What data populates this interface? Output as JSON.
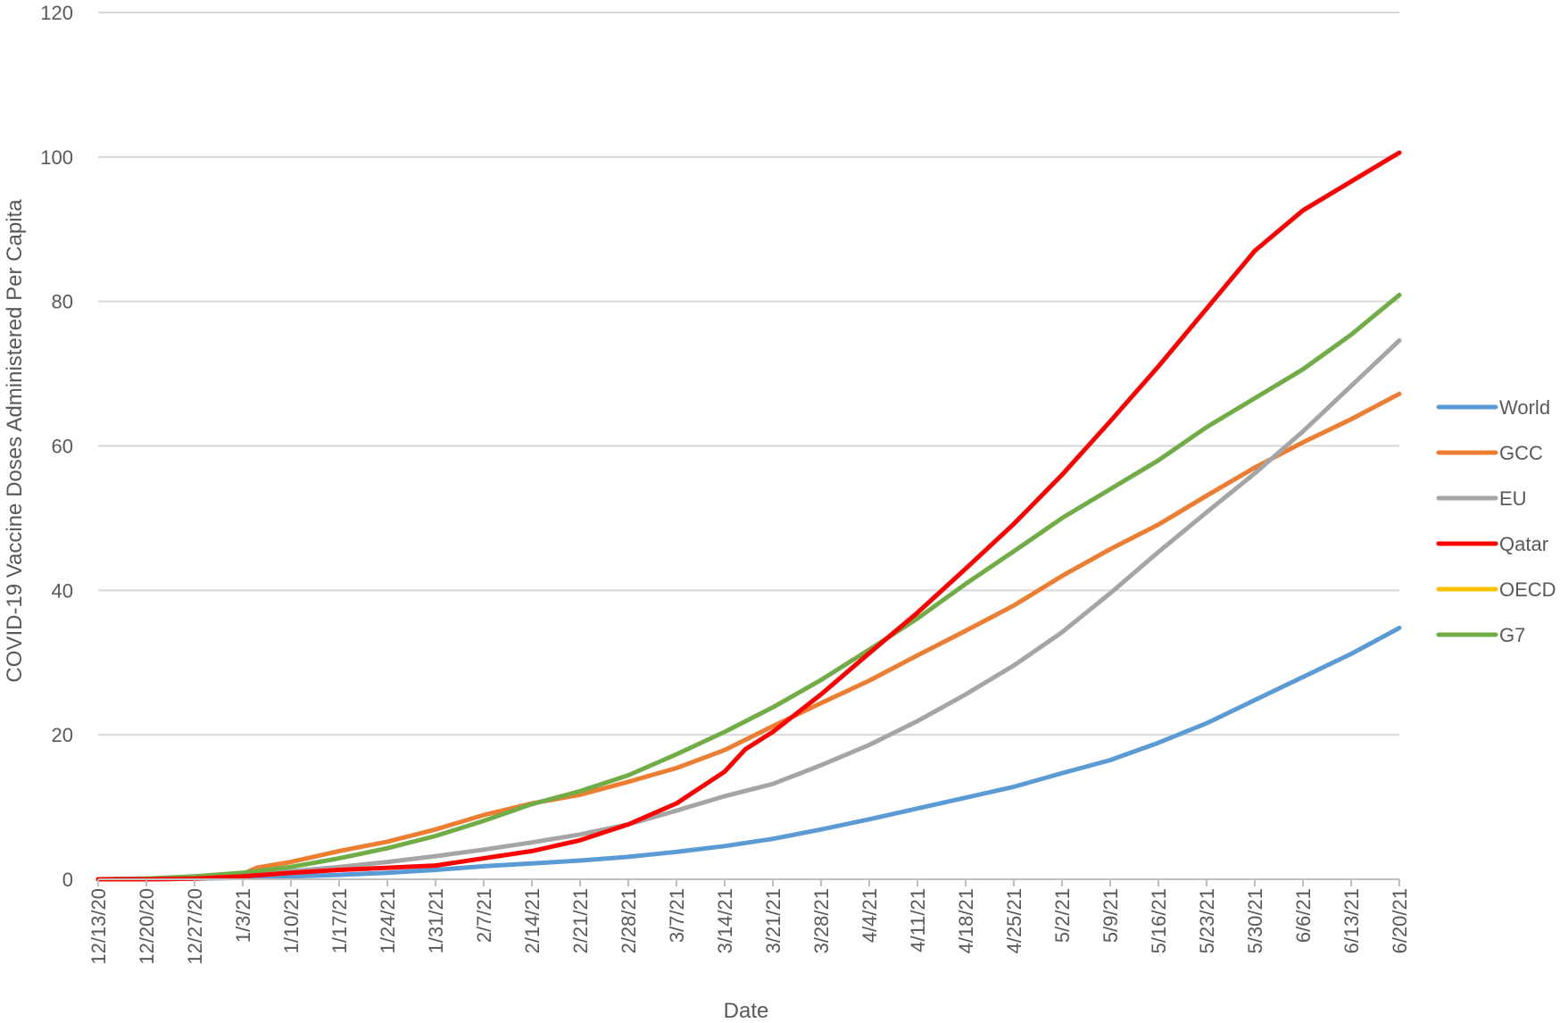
{
  "chart_data": {
    "type": "line",
    "title": "",
    "xlabel": "Date",
    "ylabel": "COVID-19 Vaccine Doses Administered Per Capita",
    "x_axis": "date",
    "x_range": [
      "2020-12-13",
      "2021-06-20"
    ],
    "ylim": [
      0,
      120
    ],
    "yticks": [
      0,
      20,
      40,
      60,
      80,
      100,
      120
    ],
    "x_tick_labels": [
      "12/13/20",
      "12/20/20",
      "12/27/20",
      "1/3/21",
      "1/10/21",
      "1/17/21",
      "1/24/21",
      "1/31/21",
      "2/7/21",
      "2/14/21",
      "2/21/21",
      "2/28/21",
      "3/7/21",
      "3/14/21",
      "3/21/21",
      "3/28/21",
      "4/4/21",
      "4/11/21",
      "4/18/21",
      "4/25/21",
      "5/2/21",
      "5/9/21",
      "5/16/21",
      "5/23/21",
      "5/30/21",
      "6/6/21",
      "6/13/21",
      "6/20/21"
    ],
    "grid": true,
    "legend_position": "right",
    "series": [
      {
        "name": "World",
        "color": "#5b9bd5",
        "points": [
          [
            "12/13/20",
            0
          ],
          [
            "12/20/20",
            0
          ],
          [
            "12/27/20",
            0.1
          ],
          [
            "1/3/21",
            0.2
          ],
          [
            "1/10/21",
            0.4
          ],
          [
            "1/17/21",
            0.6
          ],
          [
            "1/24/21",
            0.9
          ],
          [
            "1/31/21",
            1.3
          ],
          [
            "2/7/21",
            1.8
          ],
          [
            "2/14/21",
            2.2
          ],
          [
            "2/21/21",
            2.6
          ],
          [
            "2/28/21",
            3.1
          ],
          [
            "3/7/21",
            3.8
          ],
          [
            "3/14/21",
            4.6
          ],
          [
            "3/21/21",
            5.6
          ],
          [
            "3/28/21",
            6.9
          ],
          [
            "4/4/21",
            8.3
          ],
          [
            "4/11/21",
            9.8
          ],
          [
            "4/18/21",
            11.3
          ],
          [
            "4/25/21",
            12.8
          ],
          [
            "5/2/21",
            14.7
          ],
          [
            "5/9/21",
            16.5
          ],
          [
            "5/16/21",
            18.9
          ],
          [
            "5/23/21",
            21.6
          ],
          [
            "5/30/21",
            24.8
          ],
          [
            "6/6/21",
            28.0
          ],
          [
            "6/13/21",
            31.2
          ],
          [
            "6/20/21",
            34.8
          ]
        ]
      },
      {
        "name": "GCC",
        "color": "#ed7d31",
        "points": [
          [
            "12/13/20",
            0
          ],
          [
            "12/20/20",
            0.1
          ],
          [
            "12/27/20",
            0.3
          ],
          [
            "1/3/21",
            0.7
          ],
          [
            "1/5/21",
            1.6
          ],
          [
            "1/10/21",
            2.4
          ],
          [
            "1/17/21",
            3.9
          ],
          [
            "1/24/21",
            5.2
          ],
          [
            "1/31/21",
            6.9
          ],
          [
            "2/7/21",
            8.9
          ],
          [
            "2/14/21",
            10.5
          ],
          [
            "2/21/21",
            11.7
          ],
          [
            "2/28/21",
            13.5
          ],
          [
            "3/7/21",
            15.4
          ],
          [
            "3/14/21",
            17.9
          ],
          [
            "3/21/21",
            21.2
          ],
          [
            "3/28/21",
            24.4
          ],
          [
            "4/4/21",
            27.5
          ],
          [
            "4/11/21",
            31.0
          ],
          [
            "4/18/21",
            34.4
          ],
          [
            "4/25/21",
            37.9
          ],
          [
            "5/2/21",
            42.0
          ],
          [
            "5/9/21",
            45.7
          ],
          [
            "5/16/21",
            49.1
          ],
          [
            "5/23/21",
            53.1
          ],
          [
            "5/30/21",
            57.0
          ],
          [
            "6/6/21",
            60.5
          ],
          [
            "6/13/21",
            63.7
          ],
          [
            "6/20/21",
            67.2
          ]
        ]
      },
      {
        "name": "EU",
        "color": "#a5a5a5",
        "points": [
          [
            "12/13/20",
            0
          ],
          [
            "12/20/20",
            0
          ],
          [
            "12/27/20",
            0.1
          ],
          [
            "1/3/21",
            0.5
          ],
          [
            "1/10/21",
            1.1
          ],
          [
            "1/17/21",
            1.7
          ],
          [
            "1/24/21",
            2.4
          ],
          [
            "1/31/21",
            3.2
          ],
          [
            "2/7/21",
            4.1
          ],
          [
            "2/14/21",
            5.1
          ],
          [
            "2/21/21",
            6.2
          ],
          [
            "2/28/21",
            7.6
          ],
          [
            "3/7/21",
            9.5
          ],
          [
            "3/14/21",
            11.5
          ],
          [
            "3/21/21",
            13.2
          ],
          [
            "3/28/21",
            15.8
          ],
          [
            "4/4/21",
            18.6
          ],
          [
            "4/11/21",
            21.9
          ],
          [
            "4/18/21",
            25.6
          ],
          [
            "4/25/21",
            29.6
          ],
          [
            "5/2/21",
            34.2
          ],
          [
            "5/9/21",
            39.6
          ],
          [
            "5/16/21",
            45.3
          ],
          [
            "5/23/21",
            50.8
          ],
          [
            "5/30/21",
            56.2
          ],
          [
            "6/6/21",
            62.0
          ],
          [
            "6/13/21",
            68.3
          ],
          [
            "6/20/21",
            74.6
          ]
        ]
      },
      {
        "name": "Qatar",
        "color": "#ff0000",
        "points": [
          [
            "12/13/20",
            0
          ],
          [
            "12/20/20",
            0
          ],
          [
            "12/27/20",
            0.1
          ],
          [
            "1/3/21",
            0.4
          ],
          [
            "1/10/21",
            0.9
          ],
          [
            "1/17/21",
            1.3
          ],
          [
            "1/24/21",
            1.6
          ],
          [
            "1/31/21",
            1.9
          ],
          [
            "2/7/21",
            2.9
          ],
          [
            "2/14/21",
            3.9
          ],
          [
            "2/21/21",
            5.4
          ],
          [
            "2/28/21",
            7.6
          ],
          [
            "3/7/21",
            10.5
          ],
          [
            "3/14/21",
            14.9
          ],
          [
            "3/17/21",
            18.0
          ],
          [
            "3/21/21",
            20.4
          ],
          [
            "3/28/21",
            25.6
          ],
          [
            "4/4/21",
            31.3
          ],
          [
            "4/11/21",
            36.9
          ],
          [
            "4/18/21",
            43.0
          ],
          [
            "4/25/21",
            49.2
          ],
          [
            "5/2/21",
            56.0
          ],
          [
            "5/9/21",
            63.4
          ],
          [
            "5/16/21",
            71.0
          ],
          [
            "5/23/21",
            79.0
          ],
          [
            "5/30/21",
            87.0
          ],
          [
            "6/6/21",
            92.6
          ],
          [
            "6/13/21",
            96.6
          ],
          [
            "6/20/21",
            100.6
          ]
        ]
      },
      {
        "name": "OECD",
        "color": "#ffc000",
        "points": []
      },
      {
        "name": "G7",
        "color": "#70ad47",
        "points": [
          [
            "12/13/20",
            0
          ],
          [
            "12/20/20",
            0.1
          ],
          [
            "12/27/20",
            0.4
          ],
          [
            "1/3/21",
            0.9
          ],
          [
            "1/10/21",
            1.7
          ],
          [
            "1/17/21",
            2.9
          ],
          [
            "1/24/21",
            4.3
          ],
          [
            "1/31/21",
            6.0
          ],
          [
            "2/7/21",
            8.1
          ],
          [
            "2/14/21",
            10.4
          ],
          [
            "2/21/21",
            12.2
          ],
          [
            "2/28/21",
            14.4
          ],
          [
            "3/7/21",
            17.3
          ],
          [
            "3/14/21",
            20.4
          ],
          [
            "3/21/21",
            23.8
          ],
          [
            "3/28/21",
            27.6
          ],
          [
            "4/4/21",
            31.8
          ],
          [
            "4/11/21",
            36.1
          ],
          [
            "4/18/21",
            40.9
          ],
          [
            "4/25/21",
            45.4
          ],
          [
            "5/2/21",
            50.0
          ],
          [
            "5/9/21",
            54.0
          ],
          [
            "5/16/21",
            58.0
          ],
          [
            "5/23/21",
            62.6
          ],
          [
            "5/30/21",
            66.6
          ],
          [
            "6/6/21",
            70.6
          ],
          [
            "6/13/21",
            75.4
          ],
          [
            "6/20/21",
            80.9
          ]
        ]
      }
    ]
  }
}
